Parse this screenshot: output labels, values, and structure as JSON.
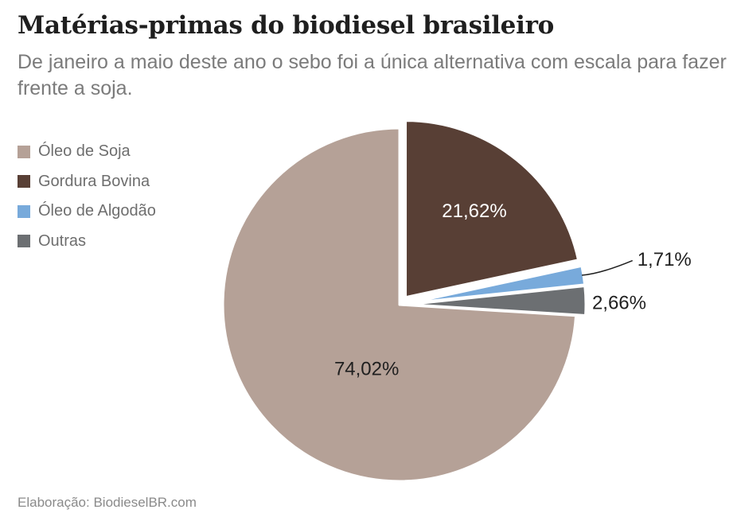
{
  "title": "Matérias-primas do biodiesel brasileiro",
  "subtitle": "De janeiro a maio deste ano o sebo foi a única alternativa com escala para fazer frente a soja.",
  "source": "Elaboração: BiodieselBR.com",
  "legend": [
    {
      "label": "Óleo de Soja",
      "color": "#b5a197"
    },
    {
      "label": "Gordura Bovina",
      "color": "#583f35"
    },
    {
      "label": "Óleo de Algodão",
      "color": "#78aadb"
    },
    {
      "label": "Outras",
      "color": "#6c6f72"
    }
  ],
  "chart_data": {
    "type": "pie",
    "title": "Matérias-primas do biodiesel brasileiro",
    "legend_position": "left",
    "slices": [
      {
        "label": "Gordura Bovina",
        "value": 21.62,
        "display": "21,62%",
        "color": "#583f35",
        "exploded": true
      },
      {
        "label": "Óleo de Algodão",
        "value": 1.71,
        "display": "1,71%",
        "color": "#78aadb",
        "exploded": true
      },
      {
        "label": "Outras",
        "value": 2.66,
        "display": "2,66%",
        "color": "#6c6f72",
        "exploded": true
      },
      {
        "label": "Óleo de Soja",
        "value": 74.02,
        "display": "74,02%",
        "color": "#b5a197",
        "exploded": false
      }
    ]
  }
}
